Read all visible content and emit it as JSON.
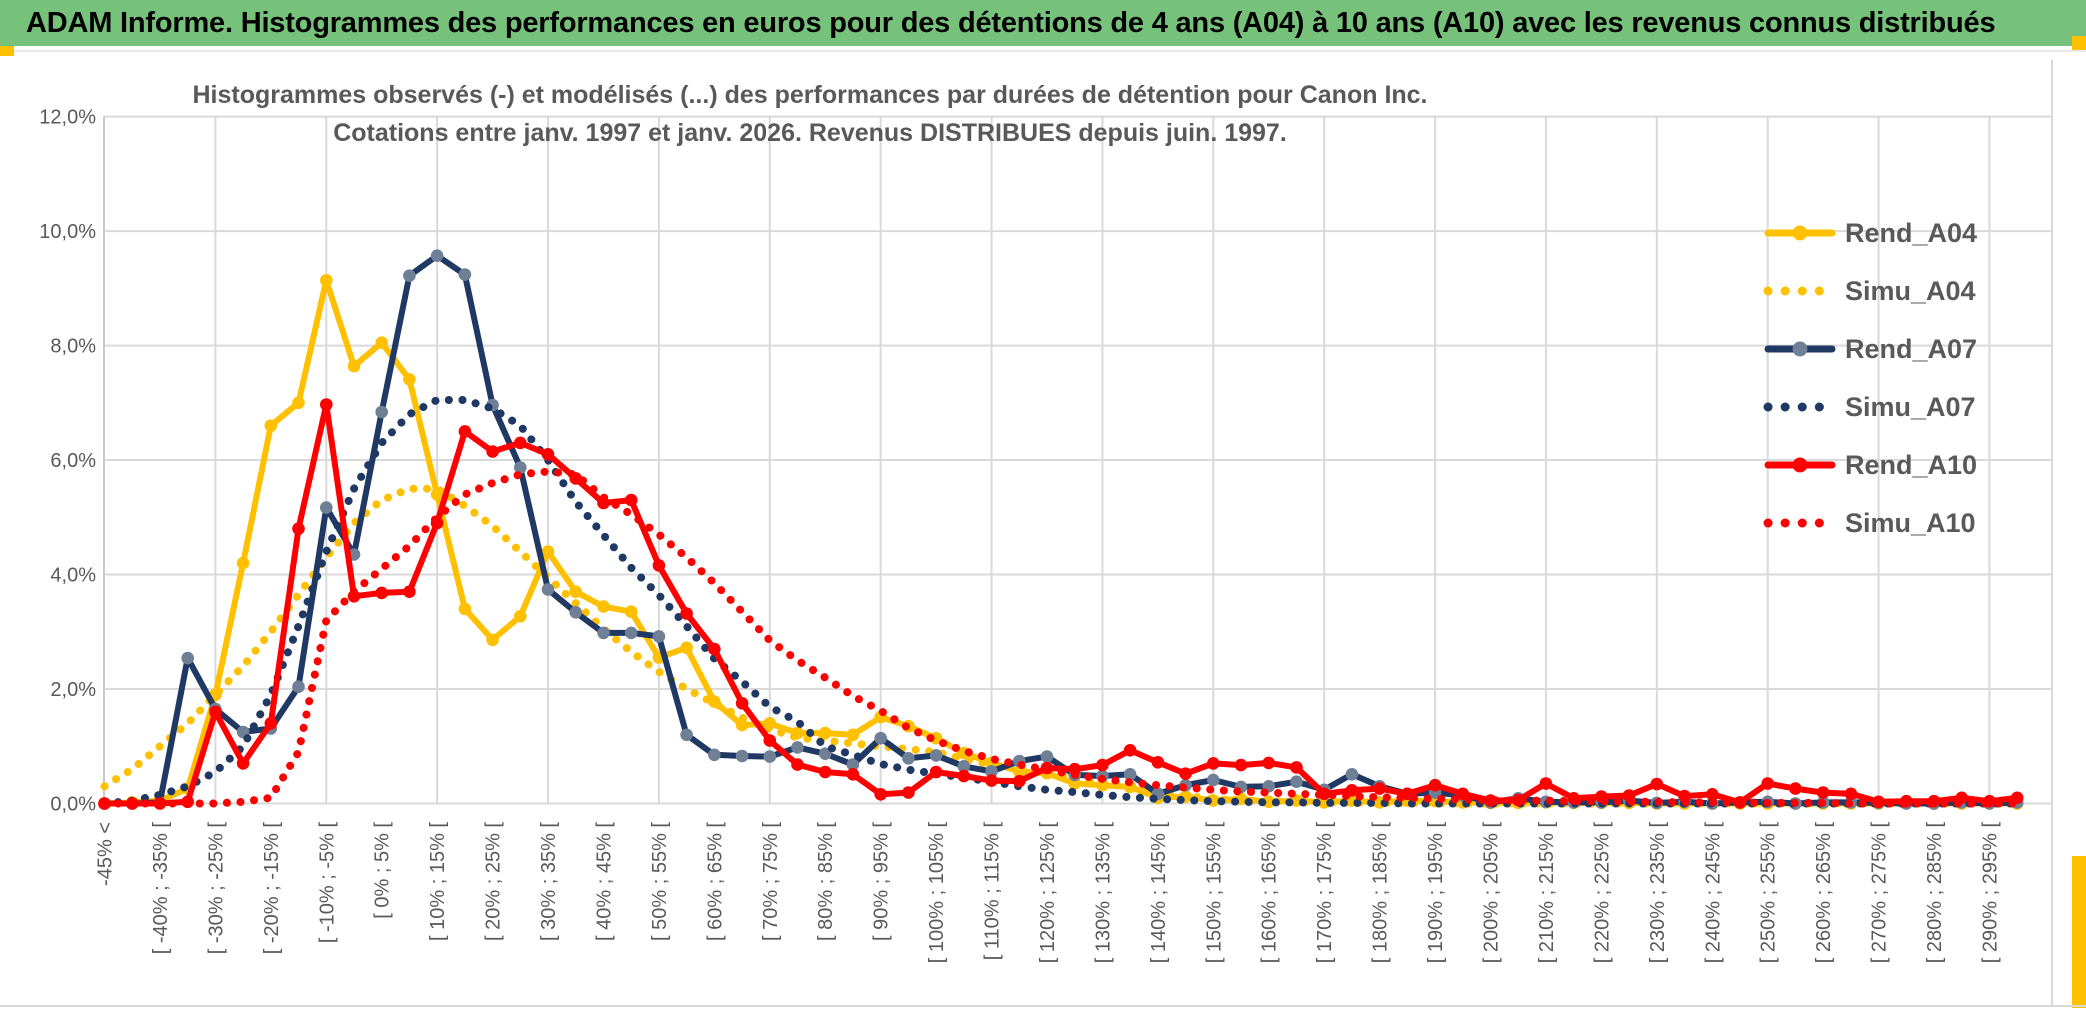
{
  "header": {
    "title": "ADAM Informe. Histogrammes des performances en euros pour des détentions de 4 ans (A04) à 10 ans (A10) avec les revenus connus distribués"
  },
  "chart_data": {
    "type": "line",
    "title_line1": "Histogrammes observés (-) et modélisés (...) des performances par durées de détention pour Canon Inc.",
    "title_line2": "Cotations entre janv. 1997 et janv. 2026. Revenus DISTRIBUES depuis juin. 1997.",
    "xlabel": "",
    "ylabel": "",
    "ylim": [
      0,
      12
    ],
    "grid": true,
    "legend_position": "right",
    "y_tick_labels": [
      "0,0%",
      "2,0%",
      "4,0%",
      "6,0%",
      "8,0%",
      "10,0%",
      "12,0%"
    ],
    "n_bins": 70,
    "x_labels_on_even_bins_only": true,
    "x_tick_labels": [
      "-45% <",
      "[ -40% ; -35% [",
      "[ -30% ; -25% [",
      "[ -20% ; -15% [",
      "[ -10% ; -5% [",
      "[ 0% ; 5% [",
      "[ 10% ; 15% [",
      "[ 20% ; 25% [",
      "[ 30% ; 35% [",
      "[ 40% ; 45% [",
      "[ 50% ; 55% [",
      "[ 60% ; 65% [",
      "[ 70% ; 75% [",
      "[ 80% ; 85% [",
      "[ 90% ; 95% [",
      "[ 100% ; 105% [",
      "[ 110% ; 115% [",
      "[ 120% ; 125% [",
      "[ 130% ; 135% [",
      "[ 140% ; 145% [",
      "[ 150% ; 155% [",
      "[ 160% ; 165% [",
      "[ 170% ; 175% [",
      "[ 180% ; 185% [",
      "[ 190% ; 195% [",
      "[ 200% ; 205% [",
      "[ 210% ; 215% [",
      "[ 220% ; 225% [",
      "[ 230% ; 235% [",
      "[ 240% ; 245% [",
      "[ 250% ; 255% [",
      "[ 260% ; 265% [",
      "[ 270% ; 275% [",
      "[ 280% ; 285% [",
      "[ 290% ; 295% ["
    ],
    "series": [
      {
        "name": "Rend_A04",
        "style": "solid",
        "color": "#FFC000",
        "marker_color": "#FFC000",
        "values": [
          0,
          0.02,
          0.05,
          0.26,
          1.9,
          4.2,
          6.6,
          7.0,
          9.14,
          7.64,
          8.05,
          7.41,
          5.4,
          3.4,
          2.86,
          3.27,
          4.4,
          3.7,
          3.44,
          3.35,
          2.55,
          2.72,
          1.78,
          1.37,
          1.4,
          1.23,
          1.23,
          1.2,
          1.51,
          1.35,
          1.14,
          0.88,
          0.71,
          0.56,
          0.53,
          0.35,
          0.32,
          0.29,
          0.1,
          0.12,
          0.05,
          0.08,
          0.03,
          0.05,
          0.02,
          0.05,
          0.02,
          0.05,
          0.04,
          0.02,
          0.01,
          0.01,
          0.02,
          0.01,
          0.01,
          0.01,
          0,
          0,
          0,
          0,
          0,
          0,
          0,
          0,
          0,
          0,
          0,
          0,
          0,
          0
        ]
      },
      {
        "name": "Simu_A04",
        "style": "dotted",
        "color": "#FFC000",
        "values": [
          0.3,
          0.6,
          1.0,
          1.4,
          1.9,
          2.4,
          3.0,
          3.65,
          4.3,
          4.9,
          5.3,
          5.5,
          5.5,
          5.2,
          4.85,
          4.4,
          3.95,
          3.5,
          3.05,
          2.65,
          2.3,
          2.0,
          1.75,
          1.5,
          1.3,
          1.15,
          1.1,
          1.05,
          1.0,
          0.95,
          0.9,
          0.78,
          0.68,
          0.6,
          0.52,
          0.45,
          0.36,
          0.28,
          0.2,
          0.13,
          0.08,
          0.05,
          0.04,
          0.03,
          0.02,
          0.02,
          0.01,
          0.01,
          0.01,
          0,
          0,
          0,
          0,
          0,
          0,
          0,
          0,
          0,
          0,
          0,
          0,
          0,
          0,
          0,
          0,
          0,
          0,
          0,
          0,
          0
        ]
      },
      {
        "name": "Rend_A07",
        "style": "solid",
        "color": "#1F3864",
        "marker_color": "#6E7F96",
        "values": [
          0,
          0,
          0.02,
          2.54,
          1.65,
          1.25,
          1.31,
          2.04,
          5.17,
          4.35,
          6.84,
          9.22,
          9.57,
          9.24,
          6.96,
          5.87,
          3.74,
          3.34,
          2.98,
          2.98,
          2.92,
          1.2,
          0.85,
          0.83,
          0.82,
          0.98,
          0.87,
          0.68,
          1.14,
          0.79,
          0.84,
          0.65,
          0.56,
          0.74,
          0.82,
          0.5,
          0.48,
          0.51,
          0.17,
          0.32,
          0.41,
          0.29,
          0.3,
          0.38,
          0.24,
          0.51,
          0.3,
          0.17,
          0.19,
          0.14,
          0.02,
          0.09,
          0.03,
          0.02,
          0.02,
          0.05,
          0.01,
          0.03,
          0,
          0.02,
          0.03,
          0,
          0.02,
          0.02,
          0.01,
          0,
          0,
          0.02,
          0,
          0.02
        ]
      },
      {
        "name": "Simu_A07",
        "style": "dotted",
        "color": "#1F3864",
        "values": [
          0,
          0.05,
          0.15,
          0.3,
          0.55,
          1.0,
          1.9,
          3.1,
          4.4,
          5.5,
          6.3,
          6.8,
          7.05,
          7.05,
          6.9,
          6.6,
          6.0,
          5.27,
          4.69,
          4.12,
          3.64,
          3.1,
          2.53,
          2.13,
          1.69,
          1.43,
          1.0,
          0.85,
          0.69,
          0.59,
          0.52,
          0.45,
          0.38,
          0.3,
          0.24,
          0.2,
          0.15,
          0.11,
          0.08,
          0.06,
          0.04,
          0.03,
          0.02,
          0.02,
          0.01,
          0.01,
          0.01,
          0,
          0,
          0,
          0,
          0,
          0,
          0,
          0,
          0,
          0,
          0,
          0,
          0,
          0,
          0,
          0,
          0,
          0,
          0,
          0,
          0,
          0,
          0
        ]
      },
      {
        "name": "Rend_A10",
        "style": "solid",
        "color": "#FF0000",
        "marker_color": "#FF0000",
        "values": [
          0,
          0,
          0,
          0.03,
          1.6,
          0.7,
          1.4,
          4.8,
          6.97,
          3.62,
          3.68,
          3.7,
          4.9,
          6.5,
          6.15,
          6.3,
          6.1,
          5.68,
          5.25,
          5.3,
          4.16,
          3.32,
          2.7,
          1.75,
          1.1,
          0.68,
          0.55,
          0.51,
          0.16,
          0.19,
          0.55,
          0.48,
          0.4,
          0.39,
          0.62,
          0.6,
          0.67,
          0.93,
          0.72,
          0.52,
          0.7,
          0.67,
          0.71,
          0.63,
          0.17,
          0.23,
          0.26,
          0.17,
          0.32,
          0.17,
          0.05,
          0.06,
          0.35,
          0.09,
          0.12,
          0.14,
          0.34,
          0.13,
          0.16,
          0.02,
          0.35,
          0.26,
          0.19,
          0.17,
          0.03,
          0.04,
          0.04,
          0.1,
          0.04,
          0.1
        ]
      },
      {
        "name": "Simu_A10",
        "style": "dotted",
        "color": "#FF0000",
        "values": [
          0,
          0,
          0,
          0,
          0,
          0.03,
          0.1,
          0.9,
          3.2,
          3.7,
          4.1,
          4.5,
          5.0,
          5.4,
          5.6,
          5.75,
          5.8,
          5.75,
          5.35,
          5.05,
          4.7,
          4.3,
          3.85,
          3.35,
          2.85,
          2.5,
          2.2,
          1.88,
          1.62,
          1.32,
          1.1,
          0.92,
          0.78,
          0.68,
          0.59,
          0.5,
          0.43,
          0.37,
          0.32,
          0.28,
          0.24,
          0.21,
          0.19,
          0.17,
          0.15,
          0.13,
          0.11,
          0.1,
          0.08,
          0.07,
          0.06,
          0.05,
          0.05,
          0.04,
          0.04,
          0.03,
          0.03,
          0.02,
          0.02,
          0.02,
          0.01,
          0.01,
          0.01,
          0,
          0,
          0,
          0,
          0,
          0,
          0
        ]
      }
    ]
  },
  "colors": {
    "header_green": "#77C27B",
    "accent_yellow": "#FFC000",
    "gridline": "#D9D9D9",
    "axis_text": "#595959",
    "title_text": "#595959",
    "rend_a04": "#FFC000",
    "rend_a07": "#1F3864",
    "rend_a07_marker": "#6E7F96",
    "rend_a10": "#FF0000"
  }
}
